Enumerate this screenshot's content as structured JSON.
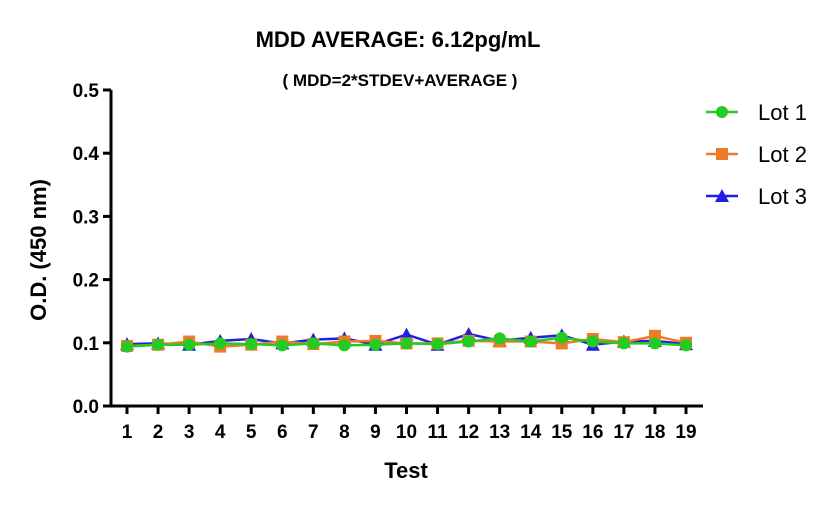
{
  "chart_data": {
    "type": "line",
    "title": "MDD AVERAGE:  6.12pg/mL",
    "subtitle": "( MDD=2*STDEV+AVERAGE )",
    "xlabel": "Test",
    "ylabel": "O.D. (450 nm)",
    "x": [
      1,
      2,
      3,
      4,
      5,
      6,
      7,
      8,
      9,
      10,
      11,
      12,
      13,
      14,
      15,
      16,
      17,
      18,
      19
    ],
    "xtick_labels": [
      "1",
      "2",
      "3",
      "4",
      "5",
      "6",
      "7",
      "8",
      "9",
      "10",
      "11",
      "12",
      "13",
      "14",
      "15",
      "16",
      "17",
      "18",
      "19"
    ],
    "ylim": [
      0,
      0.5
    ],
    "yticks": [
      0.0,
      0.1,
      0.2,
      0.3,
      0.4,
      0.5
    ],
    "ytick_labels": [
      "0.0",
      "0.1",
      "0.2",
      "0.3",
      "0.4",
      "0.5"
    ],
    "grid": false,
    "legend_position": "top-right",
    "series": [
      {
        "name": "Lot 1",
        "color": "#22cc22",
        "marker": "circle",
        "values": [
          0.094,
          0.097,
          0.097,
          0.099,
          0.098,
          0.096,
          0.099,
          0.096,
          0.097,
          0.099,
          0.098,
          0.102,
          0.107,
          0.102,
          0.108,
          0.102,
          0.099,
          0.099,
          0.096
        ]
      },
      {
        "name": "Lot 2",
        "color": "#f07a2a",
        "marker": "square",
        "values": [
          0.095,
          0.097,
          0.102,
          0.094,
          0.097,
          0.102,
          0.098,
          0.102,
          0.103,
          0.099,
          0.099,
          0.103,
          0.102,
          0.102,
          0.099,
          0.106,
          0.101,
          0.111,
          0.1
        ]
      },
      {
        "name": "Lot 3",
        "color": "#2020e0",
        "marker": "triangle",
        "values": [
          0.098,
          0.099,
          0.097,
          0.103,
          0.106,
          0.099,
          0.105,
          0.107,
          0.097,
          0.113,
          0.097,
          0.114,
          0.103,
          0.108,
          0.112,
          0.097,
          0.102,
          0.103,
          0.098
        ]
      }
    ]
  }
}
